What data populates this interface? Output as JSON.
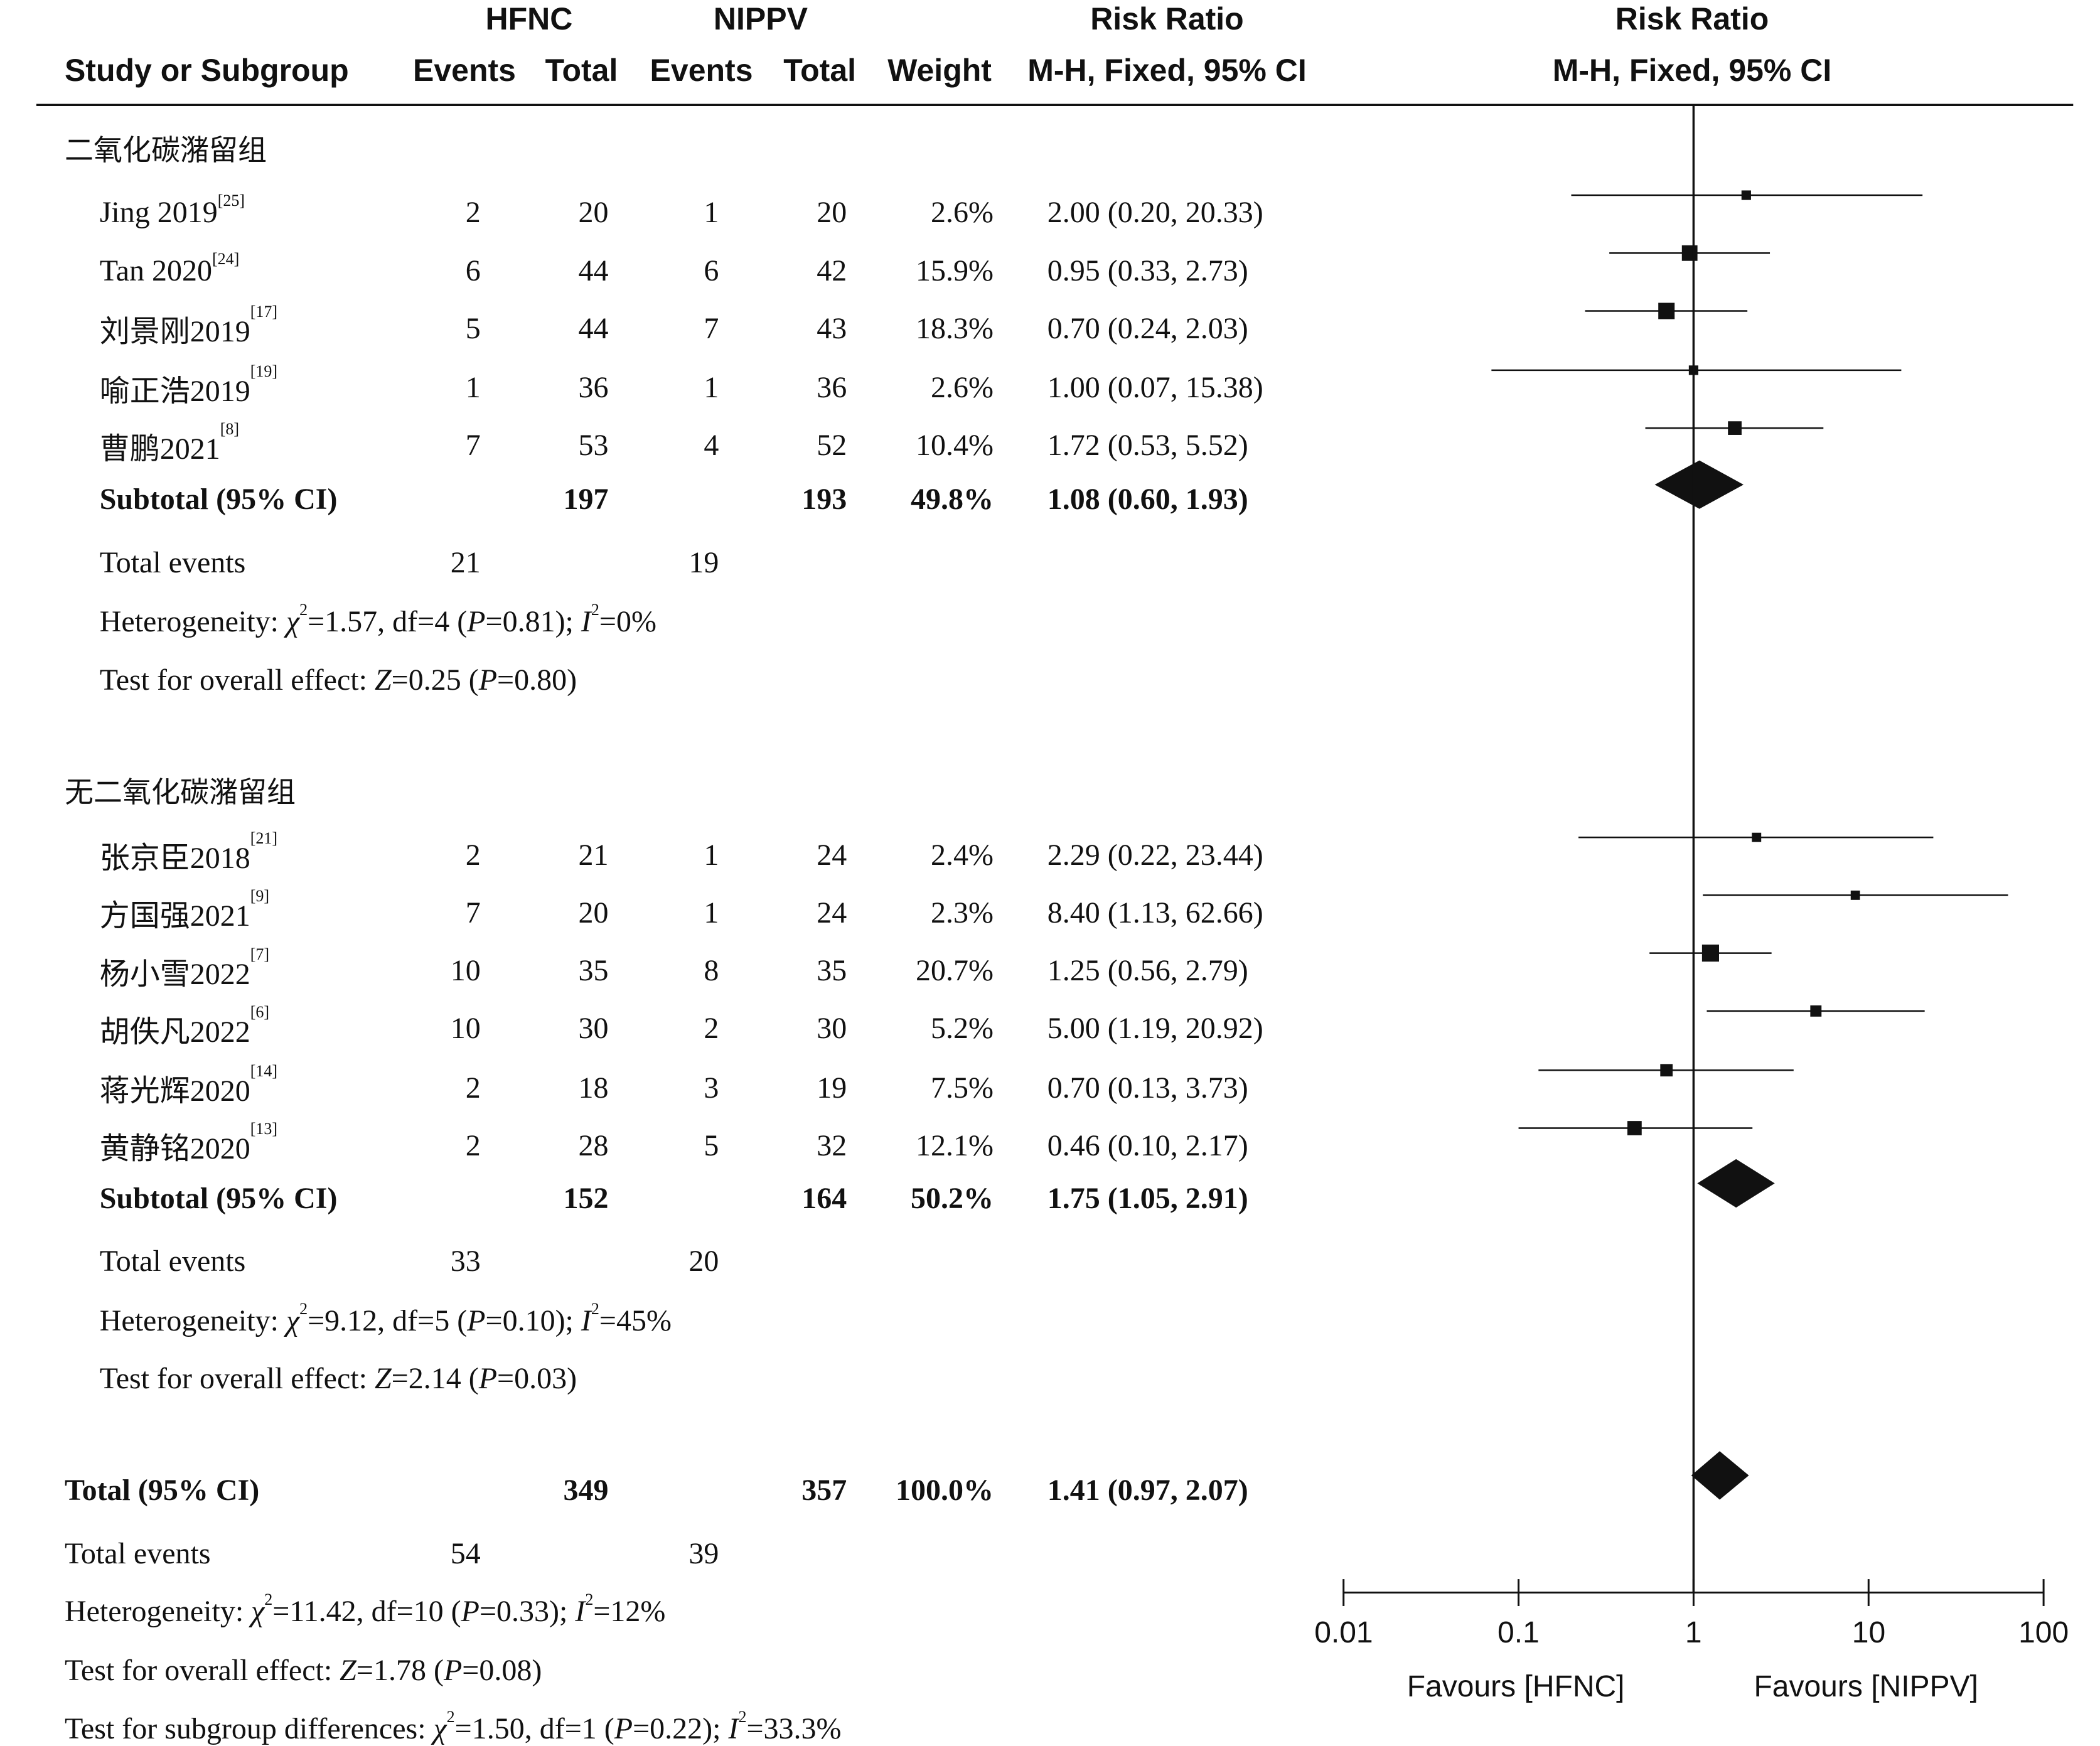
{
  "header": {
    "group1": "HFNC",
    "group2": "NIPPV",
    "col_ratio": "Risk Ratio",
    "col_ratio_method": "M-H, Fixed, 95% CI",
    "plot_title": "Risk Ratio",
    "plot_method": "M-H, Fixed, 95% CI",
    "col_study": "Study or Subgroup",
    "col_events": "Events",
    "col_total": "Total",
    "col_weight": "Weight"
  },
  "subgroups": [
    {
      "title": "二氧化碳潴留组",
      "studies": [
        {
          "name": "Jing 2019",
          "ref": "[25]",
          "e1": "2",
          "t1": "20",
          "e2": "1",
          "t2": "20",
          "weight": "2.6%",
          "ci_text": "2.00 (0.20, 20.33)",
          "rr": 2.0,
          "lo": 0.2,
          "hi": 20.33,
          "w": 2.6
        },
        {
          "name": "Tan 2020",
          "ref": "[24]",
          "e1": "6",
          "t1": "44",
          "e2": "6",
          "t2": "42",
          "weight": "15.9%",
          "ci_text": "0.95 (0.33, 2.73)",
          "rr": 0.95,
          "lo": 0.33,
          "hi": 2.73,
          "w": 15.9
        },
        {
          "name": "刘景刚2019",
          "ref": "[17]",
          "e1": "5",
          "t1": "44",
          "e2": "7",
          "t2": "43",
          "weight": "18.3%",
          "ci_text": "0.70 (0.24, 2.03)",
          "rr": 0.7,
          "lo": 0.24,
          "hi": 2.03,
          "w": 18.3
        },
        {
          "name": "喻正浩2019",
          "ref": "[19]",
          "e1": "1",
          "t1": "36",
          "e2": "1",
          "t2": "36",
          "weight": "2.6%",
          "ci_text": "1.00 (0.07, 15.38)",
          "rr": 1.0,
          "lo": 0.07,
          "hi": 15.38,
          "w": 2.6
        },
        {
          "name": "曹鹏2021",
          "ref": "[8]",
          "e1": "7",
          "t1": "53",
          "e2": "4",
          "t2": "52",
          "weight": "10.4%",
          "ci_text": "1.72 (0.53, 5.52)",
          "rr": 1.72,
          "lo": 0.53,
          "hi": 5.52,
          "w": 10.4
        }
      ],
      "subtotal": {
        "label": "Subtotal (95% CI)",
        "t1": "197",
        "t2": "193",
        "weight": "49.8%",
        "ci_text": "1.08 (0.60, 1.93)",
        "rr": 1.08,
        "lo": 0.6,
        "hi": 1.93
      },
      "total_events": {
        "label": "Total events",
        "e1": "21",
        "e2": "19"
      },
      "heterogeneity": {
        "label": "Heterogeneity: ",
        "chi": "1.57",
        "df": "df=4",
        "p": "0.81",
        "i2": "0%"
      },
      "overall": {
        "label": "Test for overall effect: ",
        "z": "0.25",
        "p": "0.80"
      }
    },
    {
      "title": "无二氧化碳潴留组",
      "studies": [
        {
          "name": "张京臣2018",
          "ref": "[21]",
          "e1": "2",
          "t1": "21",
          "e2": "1",
          "t2": "24",
          "weight": "2.4%",
          "ci_text": "2.29 (0.22, 23.44)",
          "rr": 2.29,
          "lo": 0.22,
          "hi": 23.44,
          "w": 2.4
        },
        {
          "name": "方国强2021",
          "ref": "[9]",
          "e1": "7",
          "t1": "20",
          "e2": "1",
          "t2": "24",
          "weight": "2.3%",
          "ci_text": "8.40 (1.13, 62.66)",
          "rr": 8.4,
          "lo": 1.13,
          "hi": 62.66,
          "w": 2.3
        },
        {
          "name": "杨小雪2022",
          "ref": "[7]",
          "e1": "10",
          "t1": "35",
          "e2": "8",
          "t2": "35",
          "weight": "20.7%",
          "ci_text": "1.25 (0.56, 2.79)",
          "rr": 1.25,
          "lo": 0.56,
          "hi": 2.79,
          "w": 20.7
        },
        {
          "name": "胡佚凡2022",
          "ref": "[6]",
          "e1": "10",
          "t1": "30",
          "e2": "2",
          "t2": "30",
          "weight": "5.2%",
          "ci_text": "5.00 (1.19, 20.92)",
          "rr": 5.0,
          "lo": 1.19,
          "hi": 20.92,
          "w": 5.2
        },
        {
          "name": "蒋光辉2020",
          "ref": "[14]",
          "e1": "2",
          "t1": "18",
          "e2": "3",
          "t2": "19",
          "weight": "7.5%",
          "ci_text": "0.70 (0.13, 3.73)",
          "rr": 0.7,
          "lo": 0.13,
          "hi": 3.73,
          "w": 7.5
        },
        {
          "name": "黄静铭2020",
          "ref": "[13]",
          "e1": "2",
          "t1": "28",
          "e2": "5",
          "t2": "32",
          "weight": "12.1%",
          "ci_text": "0.46 (0.10, 2.17)",
          "rr": 0.46,
          "lo": 0.1,
          "hi": 2.17,
          "w": 12.1
        }
      ],
      "subtotal": {
        "label": "Subtotal (95% CI)",
        "t1": "152",
        "t2": "164",
        "weight": "50.2%",
        "ci_text": "1.75 (1.05, 2.91)",
        "rr": 1.75,
        "lo": 1.05,
        "hi": 2.91
      },
      "total_events": {
        "label": "Total events",
        "e1": "33",
        "e2": "20"
      },
      "heterogeneity": {
        "label": "Heterogeneity: ",
        "chi": "9.12",
        "df": "df=5",
        "p": "0.10",
        "i2": "45%"
      },
      "overall": {
        "label": "Test for overall effect: ",
        "z": "2.14",
        "p": "0.03"
      }
    }
  ],
  "total": {
    "label": "Total (95% CI)",
    "t1": "349",
    "t2": "357",
    "weight": "100.0%",
    "ci_text": "1.41 (0.97, 2.07)",
    "rr": 1.41,
    "lo": 0.97,
    "hi": 2.07,
    "total_events": {
      "label": "Total events",
      "e1": "54",
      "e2": "39"
    },
    "heterogeneity": {
      "label": "Heterogeneity: ",
      "chi": "11.42",
      "df": "df=10",
      "p": "0.33",
      "i2": "12%"
    },
    "overall": {
      "label": "Test for overall effect: ",
      "z": "1.78",
      "p": "0.08"
    },
    "subgroup_diff": {
      "label": "Test for subgroup differences: ",
      "chi": "1.50",
      "df": "df=1",
      "p": "0.22",
      "i2": "33.3%"
    }
  },
  "axis": {
    "ticks": [
      "0.01",
      "0.1",
      "1",
      "10",
      "100"
    ],
    "favours_left": "Favours [HFNC]",
    "favours_right": "Favours [NIPPV]"
  },
  "chart_data": {
    "type": "forest",
    "scale": "log",
    "xlim": [
      0.01,
      100
    ],
    "reference_line": 1,
    "xticks": [
      0.01,
      0.1,
      1,
      10,
      100
    ],
    "series": [
      {
        "name": "二氧化碳潴留组",
        "points": [
          {
            "label": "Jing 2019",
            "rr": 2.0,
            "lo": 0.2,
            "hi": 20.33
          },
          {
            "label": "Tan 2020",
            "rr": 0.95,
            "lo": 0.33,
            "hi": 2.73
          },
          {
            "label": "刘景刚2019",
            "rr": 0.7,
            "lo": 0.24,
            "hi": 2.03
          },
          {
            "label": "喻正浩2019",
            "rr": 1.0,
            "lo": 0.07,
            "hi": 15.38
          },
          {
            "label": "曹鹏2021",
            "rr": 1.72,
            "lo": 0.53,
            "hi": 5.52
          }
        ],
        "subtotal": {
          "rr": 1.08,
          "lo": 0.6,
          "hi": 1.93
        }
      },
      {
        "name": "无二氧化碳潴留组",
        "points": [
          {
            "label": "张京臣2018",
            "rr": 2.29,
            "lo": 0.22,
            "hi": 23.44
          },
          {
            "label": "方国强2021",
            "rr": 8.4,
            "lo": 1.13,
            "hi": 62.66
          },
          {
            "label": "杨小雪2022",
            "rr": 1.25,
            "lo": 0.56,
            "hi": 2.79
          },
          {
            "label": "胡佚凡2022",
            "rr": 5.0,
            "lo": 1.19,
            "hi": 20.92
          },
          {
            "label": "蒋光辉2020",
            "rr": 0.7,
            "lo": 0.13,
            "hi": 3.73
          },
          {
            "label": "黄静铭2020",
            "rr": 0.46,
            "lo": 0.1,
            "hi": 2.17
          }
        ],
        "subtotal": {
          "rr": 1.75,
          "lo": 1.05,
          "hi": 2.91
        }
      }
    ],
    "overall": {
      "rr": 1.41,
      "lo": 0.97,
      "hi": 2.07
    }
  }
}
